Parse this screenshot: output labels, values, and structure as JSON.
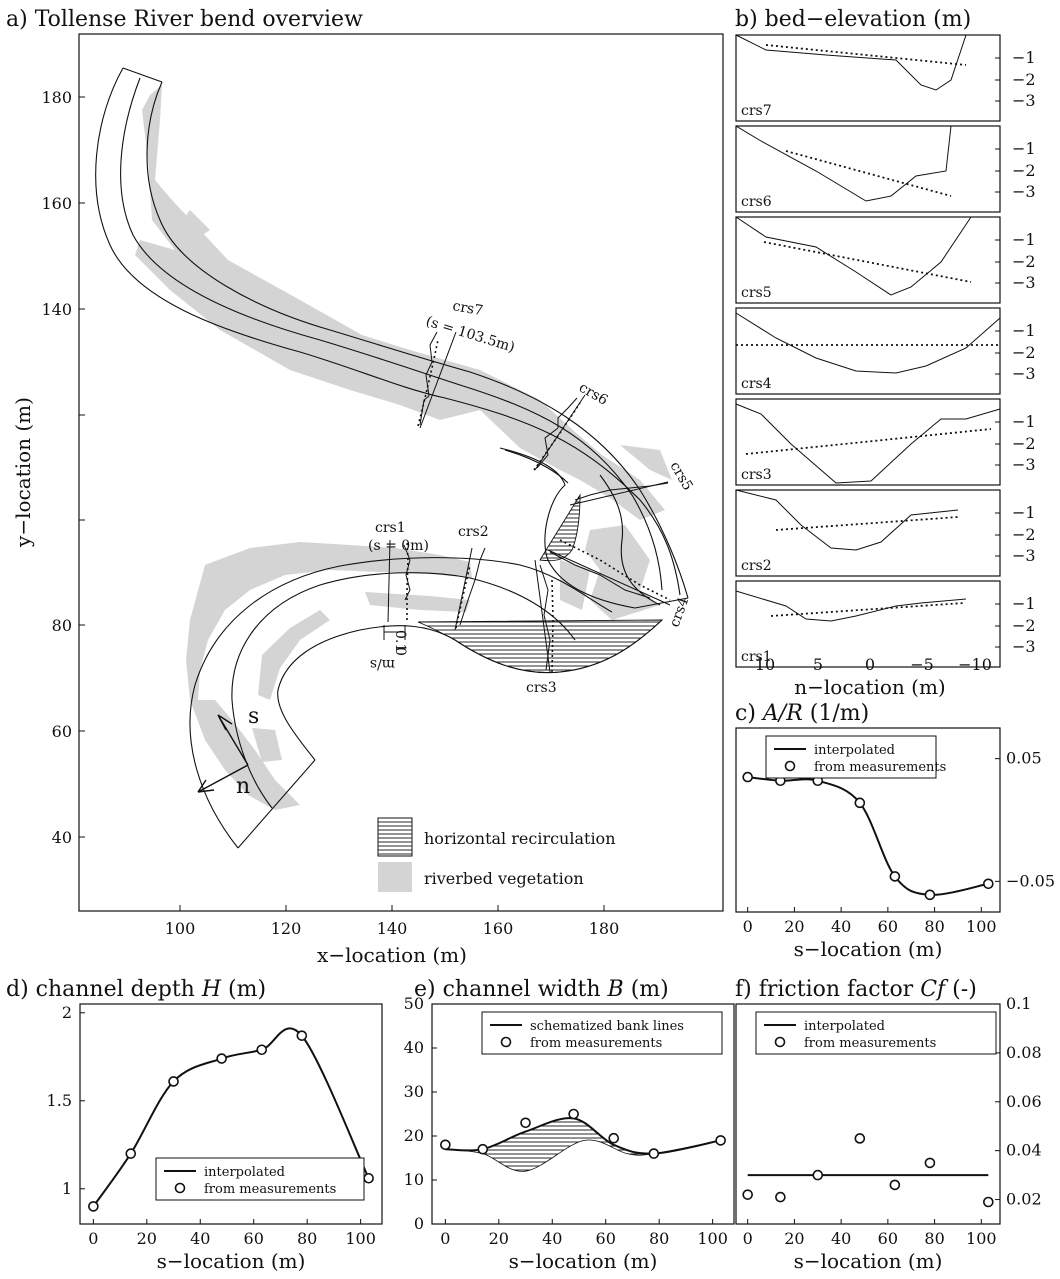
{
  "panels": {
    "a": {
      "title": "a) Tollense River bend overview",
      "xlabel": "x−location (m)",
      "ylabel": "y−location (m)",
      "xticks": [
        "100",
        "120",
        "140",
        "160",
        "180"
      ],
      "yticks": [
        "180",
        "160",
        "140",
        "80",
        "60",
        "40"
      ],
      "labels": {
        "crs1": "crs1",
        "crs1_s": "(s = 0m)",
        "crs2": "crs2",
        "crs3": "crs3",
        "crs4": "crs4",
        "crs5": "crs5",
        "crs6": "crs6",
        "crs7": "crs7",
        "crs7_s": "(s = 103.5m)",
        "s_axis": "s",
        "n_axis": "n",
        "scale_zero": "0",
        "scale_val": "0.1",
        "scale_unit": "m/s"
      },
      "legend": [
        "horizontal recirculation",
        "riverbed vegetation"
      ],
      "colors": {
        "vegetation": "#d4d4d4",
        "line": "#111111"
      }
    },
    "b": {
      "title": "b) bed−elevation (m)",
      "xlabel": "n−location (m)",
      "xticks": [
        "10",
        "5",
        "0",
        "−5",
        "−10"
      ],
      "yticks": [
        "−1",
        "−2",
        "−3"
      ],
      "labels": [
        "crs7",
        "crs6",
        "crs5",
        "crs4",
        "crs3",
        "crs2",
        "crs1"
      ]
    }
  },
  "chart_data": [
    {
      "type": "line",
      "id": "c",
      "title": "c) A/R (1/m)",
      "xlabel": "s−location (m)",
      "ylabel": "",
      "xlim": [
        -5,
        108
      ],
      "ylim": [
        -0.075,
        0.075
      ],
      "xticks": [
        "0",
        "20",
        "40",
        "60",
        "80",
        "100"
      ],
      "yticks": [
        "0.05",
        "−0.05"
      ],
      "ytick_values": [
        0.05,
        -0.05
      ],
      "legend": [
        "interpolated",
        "from measurements"
      ],
      "series": [
        {
          "name": "interpolated",
          "style": "line",
          "x": [
            0,
            14,
            30,
            48,
            63,
            78,
            103
          ],
          "values": [
            0.035,
            0.032,
            0.032,
            0.014,
            -0.046,
            -0.061,
            -0.052
          ]
        },
        {
          "name": "from measurements",
          "style": "points",
          "x": [
            0,
            14,
            30,
            48,
            63,
            78,
            103
          ],
          "values": [
            0.035,
            0.032,
            0.032,
            0.014,
            -0.046,
            -0.061,
            -0.052
          ]
        }
      ]
    },
    {
      "type": "line",
      "id": "d",
      "title": "d) channel depth H (m)",
      "xlabel": "s−location (m)",
      "ylabel": "",
      "xlim": [
        -5,
        108
      ],
      "ylim": [
        0.8,
        2.05
      ],
      "xticks": [
        "0",
        "20",
        "40",
        "60",
        "80",
        "100"
      ],
      "yticks": [
        "2",
        "1.5",
        "1"
      ],
      "ytick_values": [
        2,
        1.5,
        1
      ],
      "legend": [
        "interpolated",
        "from measurements"
      ],
      "series": [
        {
          "name": "interpolated",
          "style": "line",
          "x": [
            0,
            14,
            30,
            48,
            63,
            78,
            103
          ],
          "values": [
            0.9,
            1.2,
            1.61,
            1.74,
            1.79,
            1.87,
            1.06
          ]
        },
        {
          "name": "from measurements",
          "style": "points",
          "x": [
            0,
            14,
            30,
            48,
            63,
            78,
            103
          ],
          "values": [
            0.9,
            1.2,
            1.61,
            1.74,
            1.79,
            1.87,
            1.06
          ]
        }
      ]
    },
    {
      "type": "line",
      "id": "e",
      "title": "e) channel width B (m)",
      "xlabel": "s−location (m)",
      "ylabel": "",
      "xlim": [
        -5,
        108
      ],
      "ylim": [
        0,
        50
      ],
      "xticks": [
        "0",
        "20",
        "40",
        "60",
        "80",
        "100"
      ],
      "yticks": [
        "0",
        "10",
        "20",
        "30",
        "40",
        "50"
      ],
      "ytick_values": [
        0,
        10,
        20,
        30,
        40,
        50
      ],
      "legend": [
        "schematized bank lines",
        "from measurements"
      ],
      "series": [
        {
          "name": "schematized bank lines",
          "style": "line",
          "x": [
            0,
            14,
            30,
            48,
            63,
            78,
            103
          ],
          "values": [
            17,
            17,
            21,
            24,
            18,
            16,
            19
          ]
        },
        {
          "name": "",
          "style": "thin",
          "x": [
            0,
            14,
            30,
            52,
            68,
            78,
            103
          ],
          "values": [
            17,
            16,
            12,
            19,
            16,
            16,
            19
          ]
        },
        {
          "name": "from measurements",
          "style": "points",
          "x": [
            0,
            14,
            30,
            48,
            63,
            78,
            103
          ],
          "values": [
            18,
            17,
            23,
            25,
            19.5,
            16,
            19
          ]
        }
      ]
    },
    {
      "type": "line",
      "id": "f",
      "title": "f) friction factor Cf (-)",
      "xlabel": "s−location (m)",
      "ylabel": "",
      "xlim": [
        -5,
        108
      ],
      "ylim": [
        0.01,
        0.1
      ],
      "xticks": [
        "0",
        "20",
        "40",
        "60",
        "80",
        "100"
      ],
      "yticks": [
        "0.1",
        "0.08",
        "0.06",
        "0.04",
        "0.02"
      ],
      "ytick_values": [
        0.1,
        0.08,
        0.06,
        0.04,
        0.02
      ],
      "legend": [
        "interpolated",
        "from measurements"
      ],
      "series": [
        {
          "name": "interpolated",
          "style": "line",
          "x": [
            0,
            103
          ],
          "values": [
            0.03,
            0.03
          ]
        },
        {
          "name": "from measurements",
          "style": "points",
          "x": [
            0,
            14,
            30,
            48,
            63,
            78,
            103
          ],
          "values": [
            0.022,
            0.021,
            0.03,
            0.045,
            0.026,
            0.035,
            0.019
          ]
        }
      ]
    }
  ]
}
